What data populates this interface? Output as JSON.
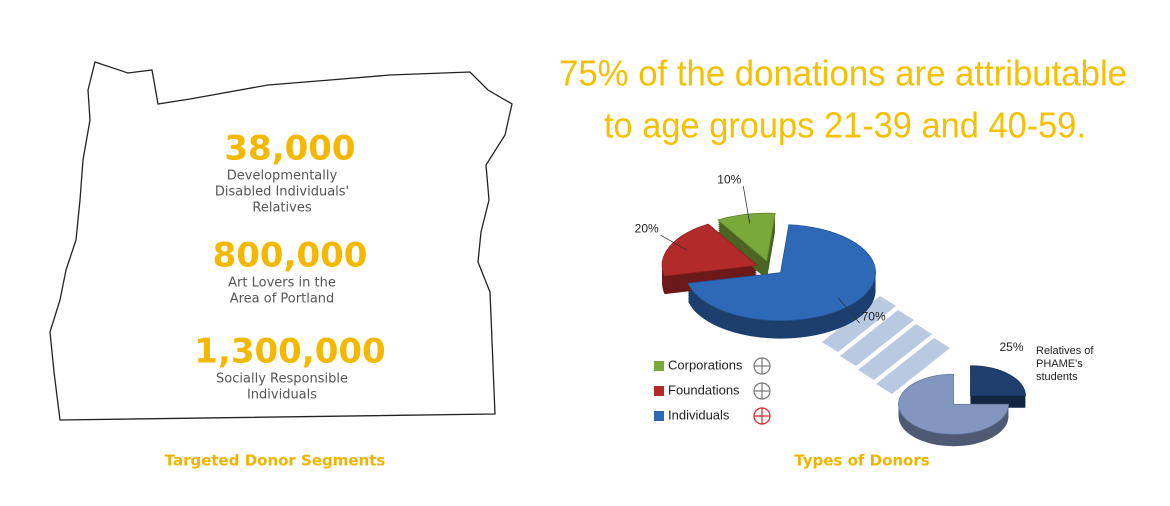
{
  "segments": {
    "title": "Targeted Donor Segments",
    "items": [
      {
        "number": "38,000",
        "lines": [
          "Developmentally",
          "Disabled Individuals'",
          "Relatives"
        ]
      },
      {
        "number": "800,000",
        "lines": [
          "Art Lovers in the",
          "Area of Portland"
        ]
      },
      {
        "number": "1,300,000",
        "lines": [
          "Socially Responsible",
          "Individuals"
        ]
      }
    ]
  },
  "headline": [
    "75% of the donations are attributable",
    "to age groups 21-39 and 40-59."
  ],
  "chart_data": [
    {
      "type": "pie",
      "title": "Types of Donors",
      "categories": [
        "Corporations",
        "Foundations",
        "Individuals"
      ],
      "values": [
        10,
        20,
        70
      ],
      "value_labels": [
        "10%",
        "20%",
        "70%"
      ],
      "colors": [
        "#7ba83a",
        "#b22a2a",
        "#2e69b8"
      ],
      "legend": "bottom-left"
    },
    {
      "type": "pie",
      "categories": [
        "Relatives of PHAME's students",
        null
      ],
      "values": [
        25,
        75
      ],
      "value_labels": [
        "25%",
        null
      ],
      "colors": [
        "#1f3f6e",
        "#8296c0"
      ]
    }
  ]
}
